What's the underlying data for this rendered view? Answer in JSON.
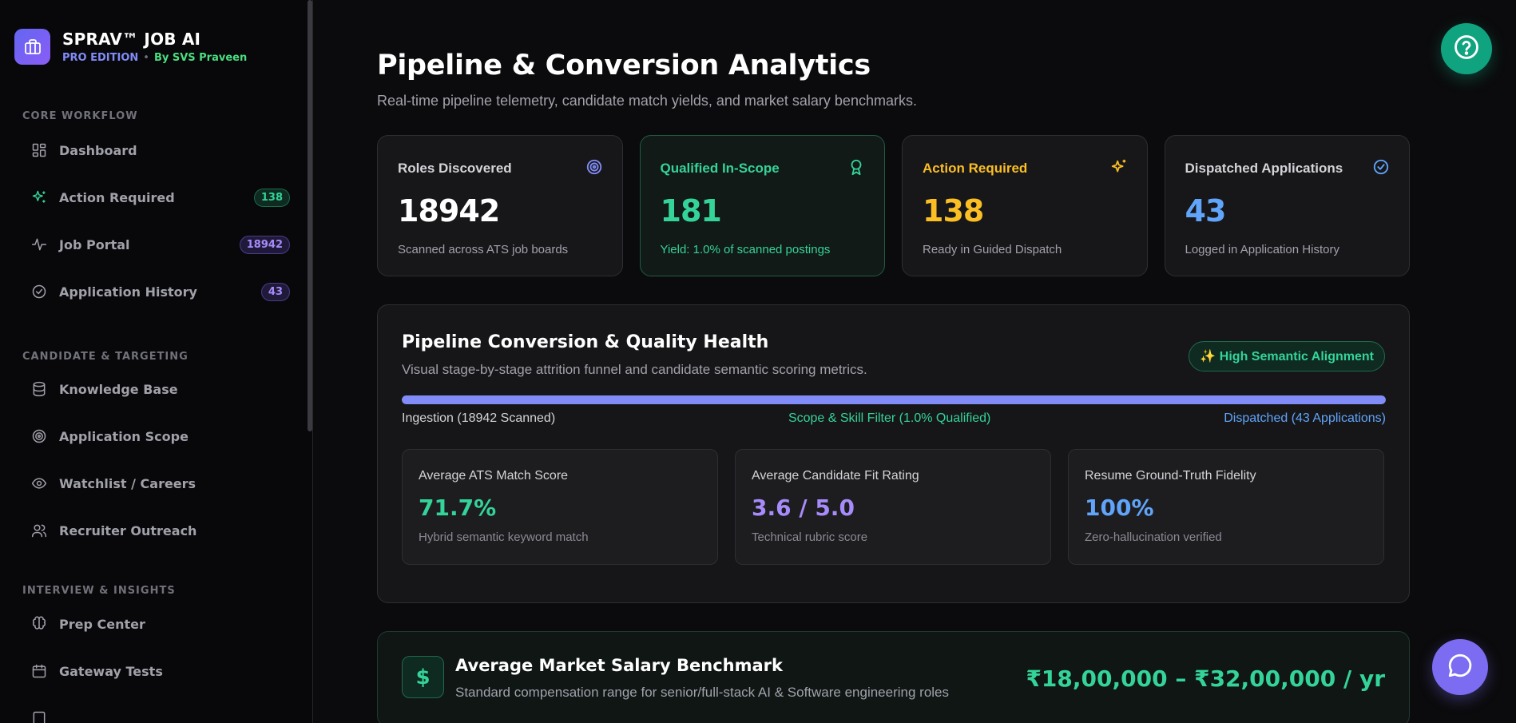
{
  "brand": {
    "title": "SPRAV™ JOB AI",
    "edition": "PRO EDITION",
    "separator": "•",
    "by": "By SVS Praveen"
  },
  "sidebar": {
    "sections": [
      {
        "title": "CORE WORKFLOW"
      },
      {
        "title": "CANDIDATE & TARGETING"
      },
      {
        "title": "INTERVIEW & INSIGHTS"
      }
    ],
    "items": [
      {
        "label": "Dashboard",
        "icon": "grid-icon"
      },
      {
        "label": "Action Required",
        "icon": "sparkles-icon",
        "badge": "138"
      },
      {
        "label": "Job Portal",
        "icon": "activity-icon",
        "badge": "18942"
      },
      {
        "label": "Application History",
        "icon": "check-circle-icon",
        "badge": "43"
      },
      {
        "label": "Knowledge Base",
        "icon": "database-icon"
      },
      {
        "label": "Application Scope",
        "icon": "target-icon"
      },
      {
        "label": "Watchlist / Careers",
        "icon": "eye-icon"
      },
      {
        "label": "Recruiter Outreach",
        "icon": "users-icon"
      },
      {
        "label": "Prep Center",
        "icon": "brain-icon"
      },
      {
        "label": "Gateway Tests",
        "icon": "calendar-icon"
      }
    ]
  },
  "header": {
    "title": "Pipeline & Conversion Analytics",
    "subtitle": "Real-time pipeline telemetry, candidate match yields, and market salary benchmarks."
  },
  "stats": [
    {
      "label": "Roles Discovered",
      "value": "18942",
      "note": "Scanned across ATS job boards",
      "icon": "target-icon",
      "color": "#ffffff"
    },
    {
      "label": "Qualified In-Scope",
      "value": "181",
      "note": "Yield: 1.0% of scanned postings",
      "icon": "award-icon",
      "color": "#34d399"
    },
    {
      "label": "Action Required",
      "value": "138",
      "note": "Ready in Guided Dispatch",
      "icon": "sparkles-icon",
      "color": "#fbbf24"
    },
    {
      "label": "Dispatched Applications",
      "value": "43",
      "note": "Logged in Application History",
      "icon": "check-circle-icon",
      "color": "#60a5fa"
    }
  ],
  "pipeline": {
    "title": "Pipeline Conversion & Quality Health",
    "subtitle": "Visual stage-by-stage attrition funnel and candidate semantic scoring metrics.",
    "pill": "✨ High Semantic Alignment",
    "progress_fraction": 1.0,
    "stages": [
      "Ingestion (18942 Scanned)",
      "Scope & Skill Filter (1.0% Qualified)",
      "Dispatched (43 Applications)"
    ],
    "metrics": [
      {
        "label": "Average ATS Match Score",
        "value": "71.7%",
        "note": "Hybrid semantic keyword match",
        "color": "#34d399"
      },
      {
        "label": "Average Candidate Fit Rating",
        "value": "3.6 / 5.0",
        "note": "Technical rubric score",
        "color": "#a78bfa"
      },
      {
        "label": "Resume Ground-Truth Fidelity",
        "value": "100%",
        "note": "Zero-hallucination verified",
        "color": "#60a5fa"
      }
    ]
  },
  "salary": {
    "icon": "$",
    "title": "Average Market Salary Benchmark",
    "subtitle": "Standard compensation range for senior/full-stack AI & Software engineering roles",
    "range": "₹18,00,000 – ₹32,00,000 / yr"
  },
  "fabs": {
    "help_icon": "help-circle-icon",
    "chat_icon": "chat-icon"
  },
  "colors": {
    "accent": "#818cf8",
    "green": "#34d399",
    "amber": "#fbbf24",
    "blue": "#60a5fa",
    "purple": "#a78bfa"
  }
}
